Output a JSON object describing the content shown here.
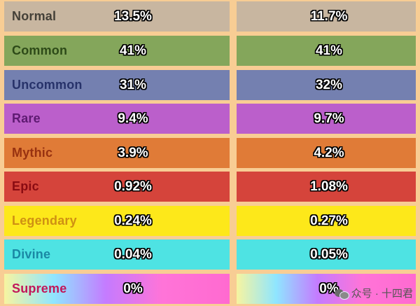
{
  "rows": [
    {
      "name": "Normal",
      "left": "13.5%",
      "right": "11.7%",
      "bg": "#c8b6a0",
      "fg": "#444038"
    },
    {
      "name": "Common",
      "left": "41%",
      "right": "41%",
      "bg": "#84a65b",
      "fg": "#2d4a18"
    },
    {
      "name": "Uncommon",
      "left": "31%",
      "right": "32%",
      "bg": "#7480b0",
      "fg": "#27326a"
    },
    {
      "name": "Rare",
      "left": "9.4%",
      "right": "9.7%",
      "bg": "#bb5fcb",
      "fg": "#5e1a72"
    },
    {
      "name": "Mythic",
      "left": "3.9%",
      "right": "4.2%",
      "bg": "#e07b37",
      "fg": "#983210"
    },
    {
      "name": "Epic",
      "left": "0.92%",
      "right": "1.08%",
      "bg": "#d5443b",
      "fg": "#8a0b12"
    },
    {
      "name": "Legendary",
      "left": "0.24%",
      "right": "0.27%",
      "bg": "#fde81a",
      "fg": "#cf9013"
    },
    {
      "name": "Divine",
      "left": "0.04%",
      "right": "0.05%",
      "bg": "#4ee3e3",
      "fg": "#1a88a4"
    },
    {
      "name": "Supreme",
      "left": "0%",
      "right": "0%",
      "bg": "rainbow",
      "fg": "#c2175a"
    }
  ],
  "watermark": {
    "text": "众号 · 十四君",
    "icon": "chat-bubbles-icon"
  }
}
